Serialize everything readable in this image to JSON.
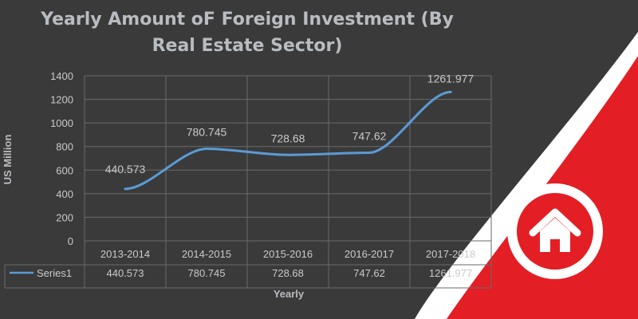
{
  "colors": {
    "background": "#3a3a3a",
    "accent_red": "#e31e25",
    "line": "#5b9bd5",
    "text": "#c9cacc"
  },
  "badge": {
    "icon": "home-icon"
  },
  "chart_data": {
    "type": "line",
    "title": "Yearly Amount oF Foreign Investment (By Real Estate Sector)",
    "xlabel": "Yearly",
    "ylabel": "US Million",
    "categories": [
      "2013-2014",
      "2014-2015",
      "2015-2016",
      "2016-2017",
      "2017-2018"
    ],
    "series": [
      {
        "name": "Series1",
        "values": [
          440.573,
          780.745,
          728.68,
          747.62,
          1261.977
        ],
        "labels": [
          "440.573",
          "780.745",
          "728.68",
          "747.62",
          "1261.977"
        ]
      }
    ],
    "ylim": [
      0,
      1400
    ],
    "yticks": [
      "0",
      "200",
      "400",
      "600",
      "800",
      "1000",
      "1200",
      "1400"
    ],
    "data_table": true,
    "grid": true
  }
}
